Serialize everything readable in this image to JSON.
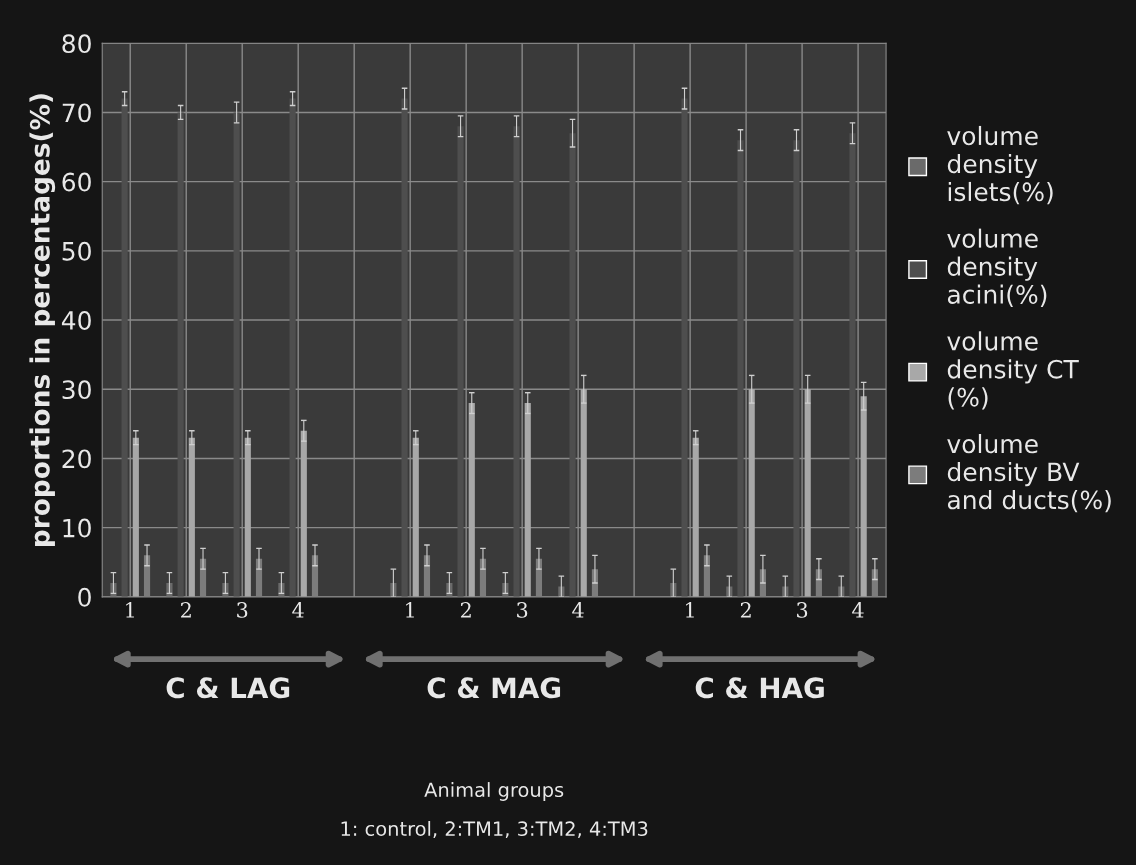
{
  "chart_data": {
    "type": "bar",
    "ylabel": "proportions in percentages(%)",
    "categories": [
      "1",
      "2",
      "3",
      "4",
      null,
      "1",
      "2",
      "3",
      "4",
      null,
      "1",
      "2",
      "3",
      "4"
    ],
    "series": [
      {
        "name": "volume density islets(%)",
        "color": "#6a6a6a",
        "values": [
          2,
          2,
          2,
          2,
          null,
          2,
          2,
          2,
          1.5,
          null,
          2,
          1.5,
          1.5,
          1.5
        ],
        "errors": [
          1.5,
          1.5,
          1.5,
          1.5,
          null,
          2,
          1.5,
          1.5,
          1.5,
          null,
          2,
          1.5,
          1.5,
          1.5
        ]
      },
      {
        "name": "volume density acini(%)",
        "color": "#4e4e4e",
        "values": [
          72,
          70,
          70,
          72,
          null,
          72,
          68,
          68,
          67,
          null,
          72,
          66,
          66,
          67
        ],
        "errors": [
          1,
          1,
          1.5,
          1,
          null,
          1.5,
          1.5,
          1.5,
          2,
          null,
          1.5,
          1.5,
          1.5,
          1.5
        ]
      },
      {
        "name": "volume density CT (%)",
        "color": "#a8a8a8",
        "values": [
          23,
          23,
          23,
          24,
          null,
          23,
          28,
          28,
          30,
          null,
          23,
          30,
          30,
          29
        ],
        "errors": [
          1,
          1,
          1,
          1.5,
          null,
          1,
          1.5,
          1.5,
          2,
          null,
          1,
          2,
          2,
          2
        ]
      },
      {
        "name": "volume density BV and ducts(%)",
        "color": "#7c7c7c",
        "values": [
          6,
          5.5,
          5.5,
          6,
          null,
          6,
          5.5,
          5.5,
          4,
          null,
          6,
          4,
          4,
          4
        ],
        "errors": [
          1.5,
          1.5,
          1.5,
          1.5,
          null,
          1.5,
          1.5,
          1.5,
          2,
          null,
          1.5,
          2,
          1.5,
          1.5
        ]
      }
    ],
    "ylim": [
      0,
      80
    ],
    "yticks": [
      0,
      10,
      20,
      30,
      40,
      50,
      60,
      70,
      80
    ],
    "grid": true,
    "legend": "right",
    "annotations": [
      "C & LAG",
      "C & MAG",
      "C & HAG",
      "Animal groups",
      "1: control, 2:TM1, 3:TM2, 4:TM3"
    ]
  }
}
